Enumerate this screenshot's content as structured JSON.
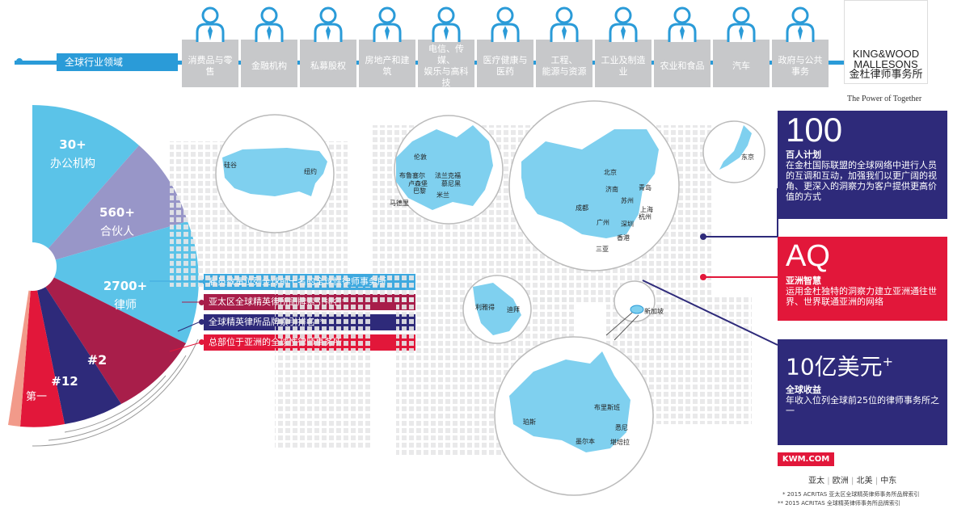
{
  "industries": {
    "heading": "全球行业领域",
    "items": [
      "消费品与零售",
      "金融机构",
      "私募股权",
      "房地产和建筑",
      "电信、传媒、\n娱乐与高科技",
      "医疗健康与\n医药",
      "工程、\n能源与资源",
      "工业及制造业",
      "农业和食品",
      "汽车",
      "政府与公共\n事务"
    ]
  },
  "logo": {
    "line1": "KING&WOOD",
    "line2": "MALLESONS",
    "line3": "金杜律师事务所",
    "tagline": "The Power of Together"
  },
  "stats": {
    "offices_value": "30+",
    "offices_label": "办公机构",
    "partners_value": "560+",
    "partners_label": "合伙人",
    "lawyers_value": "2700+",
    "lawyers_label": "律师",
    "rank2": "#2",
    "rank12": "#12",
    "first": "第一"
  },
  "callouts": [
    {
      "text": "雇员数量位列全球前十名的全球性律师事务所",
      "color": "#3fa9df"
    },
    {
      "text": "亚太区全球精英律所品牌索引排名*",
      "color": "#a81e4a"
    },
    {
      "text": "全球精英律所品牌索引排名**",
      "color": "#2e2a7a"
    },
    {
      "text": "总部位于亚洲的全球性律师事务所",
      "color": "#e2173a"
    }
  ],
  "map": {
    "us_cities": [
      "硅谷",
      "纽约"
    ],
    "europe_cities": [
      "伦敦",
      "布鲁塞尔",
      "法兰克福",
      "卢森堡",
      "慕尼黑",
      "巴黎",
      "米兰",
      "马德里"
    ],
    "china_cities": [
      "北京",
      "青岛",
      "济南",
      "苏州",
      "上海",
      "杭州",
      "成都",
      "广州",
      "深圳",
      "香港",
      "三亚"
    ],
    "japan_city": "东京",
    "middle_east_cities": [
      "利雅得",
      "迪拜"
    ],
    "singapore": "新加坡",
    "australia_cities": [
      "布里斯班",
      "珀斯",
      "悉尼",
      "墨尔本",
      "堪培拉"
    ]
  },
  "panels": {
    "p100": {
      "big": "100",
      "sub": "百人计划",
      "desc": "在金杜国际联盟的全球网络中进行人员的互调和互动，加强我们以更广阔的视角、更深入的洞察力为客户提供更高价值的方式",
      "color": "#2e2a7a"
    },
    "aq": {
      "big": "AQ",
      "sub": "亚洲智慧",
      "desc": "运用金杜独特的洞察力建立亚洲通往世界、世界联通亚洲的网络",
      "color": "#e2173a"
    },
    "revenue": {
      "big": "10亿美元",
      "sup": "+",
      "sub": "全球收益",
      "desc": "年收入位列全球前25位的律师事务所之一",
      "color": "#2e2a7a"
    }
  },
  "footer": {
    "site": "KWM.COM",
    "regions": [
      "亚太",
      "欧洲",
      "北美",
      "中东"
    ],
    "note1": "* 2015 ACRITAS  亚太区全球精英律师事务所品牌索引",
    "note2": "** 2015 ACRITAS  全球精英律师事务所品牌索引"
  },
  "colors": {
    "blue": "#2a9bd8",
    "light_blue": "#5bc3e8",
    "purple": "#9896c8",
    "maroon": "#a81e4a",
    "navy": "#2e2a7a",
    "red": "#e2173a",
    "grey": "#c7c8ca"
  }
}
